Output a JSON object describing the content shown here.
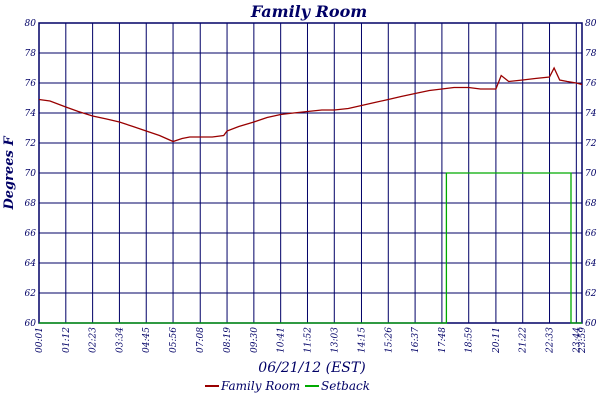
{
  "chart_data": {
    "type": "line",
    "title": "Family Room",
    "xlabel": "06/21/12 (EST)",
    "ylabel": "Degrees F",
    "ylim": [
      60,
      80
    ],
    "yticks": [
      60,
      62,
      64,
      66,
      68,
      70,
      72,
      74,
      76,
      78,
      80
    ],
    "xlim": [
      "00:01",
      "23:59"
    ],
    "xticks": [
      "00:01",
      "01:12",
      "02:23",
      "03:34",
      "04:45",
      "05:56",
      "07:08",
      "08:19",
      "09:30",
      "10:41",
      "11:52",
      "13:03",
      "14:15",
      "15:26",
      "16:37",
      "17:48",
      "18:59",
      "20:11",
      "21:22",
      "22:33",
      "23:44",
      "23:59"
    ],
    "grid": true,
    "legend_position": "bottom",
    "series": [
      {
        "name": "Family Room",
        "color": "#990000",
        "points": [
          [
            "00:01",
            74.9
          ],
          [
            "00:30",
            74.8
          ],
          [
            "01:12",
            74.4
          ],
          [
            "01:45",
            74.1
          ],
          [
            "02:23",
            73.8
          ],
          [
            "03:00",
            73.6
          ],
          [
            "03:34",
            73.4
          ],
          [
            "04:10",
            73.1
          ],
          [
            "04:45",
            72.8
          ],
          [
            "05:20",
            72.5
          ],
          [
            "05:56",
            72.1
          ],
          [
            "06:20",
            72.3
          ],
          [
            "06:40",
            72.4
          ],
          [
            "07:08",
            72.4
          ],
          [
            "07:40",
            72.4
          ],
          [
            "08:10",
            72.5
          ],
          [
            "08:19",
            72.8
          ],
          [
            "08:50",
            73.1
          ],
          [
            "09:30",
            73.4
          ],
          [
            "10:05",
            73.7
          ],
          [
            "10:41",
            73.9
          ],
          [
            "11:15",
            74.0
          ],
          [
            "11:52",
            74.1
          ],
          [
            "12:30",
            74.2
          ],
          [
            "13:03",
            74.2
          ],
          [
            "13:40",
            74.3
          ],
          [
            "14:15",
            74.5
          ],
          [
            "14:50",
            74.7
          ],
          [
            "15:26",
            74.9
          ],
          [
            "16:00",
            75.1
          ],
          [
            "16:37",
            75.3
          ],
          [
            "17:15",
            75.5
          ],
          [
            "17:48",
            75.6
          ],
          [
            "18:20",
            75.7
          ],
          [
            "18:59",
            75.7
          ],
          [
            "19:30",
            75.6
          ],
          [
            "20:11",
            75.6
          ],
          [
            "20:25",
            76.5
          ],
          [
            "20:45",
            76.1
          ],
          [
            "21:22",
            76.2
          ],
          [
            "21:55",
            76.3
          ],
          [
            "22:33",
            76.4
          ],
          [
            "22:45",
            77.0
          ],
          [
            "23:00",
            76.2
          ],
          [
            "23:20",
            76.1
          ],
          [
            "23:44",
            76.0
          ],
          [
            "23:59",
            75.9
          ]
        ]
      },
      {
        "name": "Setback",
        "color": "#00aa00",
        "points": [
          [
            "00:01",
            60
          ],
          [
            "18:00",
            60
          ],
          [
            "18:00",
            70
          ],
          [
            "23:30",
            70
          ],
          [
            "23:30",
            60
          ],
          [
            "23:59",
            60
          ]
        ]
      }
    ]
  },
  "colors": {
    "frame": "#000066",
    "grid": "#000066",
    "title": "#000066",
    "label": "#000066",
    "background": "#ffffff"
  }
}
